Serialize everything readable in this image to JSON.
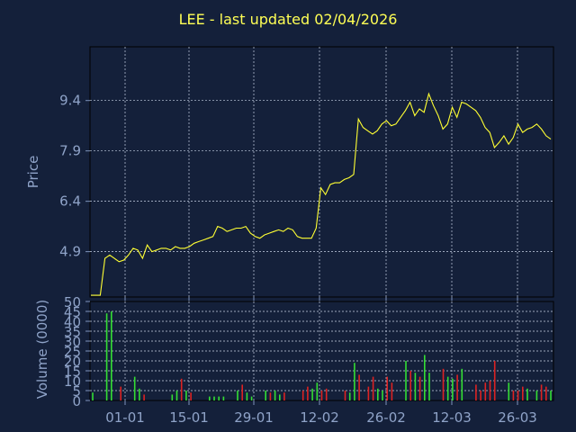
{
  "chart_data": [
    {
      "type": "line",
      "title": "LEE - last updated 02/04/2026",
      "xlabel": "",
      "ylabel": "Price",
      "ylim": [
        3.55,
        11.0
      ],
      "yticks": [
        4.9,
        6.4,
        7.9,
        9.4
      ],
      "xtick_labels": [
        "01-01",
        "15-01",
        "29-01",
        "12-02",
        "26-02",
        "12-03",
        "26-03"
      ],
      "grid": true,
      "line_color": "#ffff33",
      "series": [
        {
          "values": [
            3.6,
            3.6,
            3.6,
            4.7,
            4.8,
            4.7,
            4.6,
            4.65,
            4.8,
            5.0,
            4.95,
            4.7,
            5.1,
            4.9,
            4.95,
            5.0,
            5.0,
            4.95,
            5.05,
            5.0,
            5.0,
            5.05,
            5.15,
            5.2,
            5.25,
            5.3,
            5.35,
            5.65,
            5.6,
            5.5,
            5.55,
            5.6,
            5.6,
            5.65,
            5.45,
            5.35,
            5.3,
            5.4,
            5.45,
            5.5,
            5.55,
            5.5,
            5.6,
            5.55,
            5.35,
            5.3,
            5.3,
            5.3,
            5.6,
            6.8,
            6.6,
            6.9,
            6.95,
            6.95,
            7.05,
            7.1,
            7.2,
            8.85,
            8.6,
            8.5,
            8.4,
            8.5,
            8.7,
            8.8,
            8.65,
            8.7,
            8.9,
            9.1,
            9.35,
            8.95,
            9.15,
            9.05,
            9.6,
            9.25,
            8.95,
            8.55,
            8.7,
            9.2,
            8.9,
            9.35,
            9.3,
            9.2,
            9.1,
            8.9,
            8.6,
            8.45,
            8.0,
            8.15,
            8.35,
            8.1,
            8.3,
            8.7,
            8.45,
            8.55,
            8.6,
            8.7,
            8.55,
            8.35,
            8.25
          ]
        }
      ]
    },
    {
      "type": "bar",
      "title": "",
      "xlabel": "",
      "ylabel": "Volume (0000)",
      "ylim": [
        0,
        50
      ],
      "yticks": [
        0,
        5,
        10,
        15,
        20,
        25,
        30,
        35,
        40,
        45,
        50
      ],
      "xtick_labels": [
        "01-01",
        "15-01",
        "29-01",
        "12-02",
        "26-02",
        "12-03",
        "26-03"
      ],
      "grid": true,
      "up_color": "#33dd33",
      "down_color": "#dd2222",
      "bars": [
        {
          "v": 4,
          "d": "up"
        },
        {
          "v": 0,
          "d": "up"
        },
        {
          "v": 0,
          "d": "up"
        },
        {
          "v": 44,
          "d": "up"
        },
        {
          "v": 45,
          "d": "up"
        },
        {
          "v": 0,
          "d": "up"
        },
        {
          "v": 7,
          "d": "down"
        },
        {
          "v": 0,
          "d": "up"
        },
        {
          "v": 0,
          "d": "up"
        },
        {
          "v": 12,
          "d": "up"
        },
        {
          "v": 6,
          "d": "up"
        },
        {
          "v": 3,
          "d": "down"
        },
        {
          "v": 0,
          "d": "up"
        },
        {
          "v": 0,
          "d": "up"
        },
        {
          "v": 0,
          "d": "up"
        },
        {
          "v": 0,
          "d": "up"
        },
        {
          "v": 0,
          "d": "up"
        },
        {
          "v": 3,
          "d": "up"
        },
        {
          "v": 5,
          "d": "up"
        },
        {
          "v": 11,
          "d": "down"
        },
        {
          "v": 5,
          "d": "up"
        },
        {
          "v": 4,
          "d": "down"
        },
        {
          "v": 0,
          "d": "up"
        },
        {
          "v": 0,
          "d": "up"
        },
        {
          "v": 0,
          "d": "up"
        },
        {
          "v": 2,
          "d": "up"
        },
        {
          "v": 2,
          "d": "up"
        },
        {
          "v": 2,
          "d": "up"
        },
        {
          "v": 2,
          "d": "up"
        },
        {
          "v": 0,
          "d": "up"
        },
        {
          "v": 0,
          "d": "up"
        },
        {
          "v": 5,
          "d": "up"
        },
        {
          "v": 8,
          "d": "down"
        },
        {
          "v": 4,
          "d": "up"
        },
        {
          "v": 2,
          "d": "up"
        },
        {
          "v": 0,
          "d": "up"
        },
        {
          "v": 0,
          "d": "up"
        },
        {
          "v": 5,
          "d": "up"
        },
        {
          "v": 4,
          "d": "down"
        },
        {
          "v": 5,
          "d": "up"
        },
        {
          "v": 3,
          "d": "up"
        },
        {
          "v": 4,
          "d": "down"
        },
        {
          "v": 0,
          "d": "up"
        },
        {
          "v": 0,
          "d": "up"
        },
        {
          "v": 0,
          "d": "up"
        },
        {
          "v": 5,
          "d": "down"
        },
        {
          "v": 7,
          "d": "down"
        },
        {
          "v": 6,
          "d": "up"
        },
        {
          "v": 9,
          "d": "up"
        },
        {
          "v": 5,
          "d": "down"
        },
        {
          "v": 6,
          "d": "down"
        },
        {
          "v": 0,
          "d": "up"
        },
        {
          "v": 0,
          "d": "up"
        },
        {
          "v": 0,
          "d": "up"
        },
        {
          "v": 5,
          "d": "down"
        },
        {
          "v": 4,
          "d": "up"
        },
        {
          "v": 19,
          "d": "up"
        },
        {
          "v": 13,
          "d": "down"
        },
        {
          "v": 0,
          "d": "up"
        },
        {
          "v": 7,
          "d": "down"
        },
        {
          "v": 12,
          "d": "down"
        },
        {
          "v": 6,
          "d": "up"
        },
        {
          "v": 5,
          "d": "up"
        },
        {
          "v": 12,
          "d": "down"
        },
        {
          "v": 9,
          "d": "down"
        },
        {
          "v": 0,
          "d": "up"
        },
        {
          "v": 0,
          "d": "up"
        },
        {
          "v": 20,
          "d": "up"
        },
        {
          "v": 15,
          "d": "down"
        },
        {
          "v": 14,
          "d": "up"
        },
        {
          "v": 12,
          "d": "down"
        },
        {
          "v": 23,
          "d": "up"
        },
        {
          "v": 14,
          "d": "up"
        },
        {
          "v": 0,
          "d": "up"
        },
        {
          "v": 0,
          "d": "up"
        },
        {
          "v": 16,
          "d": "down"
        },
        {
          "v": 12,
          "d": "up"
        },
        {
          "v": 11,
          "d": "up"
        },
        {
          "v": 13,
          "d": "down"
        },
        {
          "v": 16,
          "d": "up"
        },
        {
          "v": 0,
          "d": "up"
        },
        {
          "v": 0,
          "d": "up"
        },
        {
          "v": 8,
          "d": "down"
        },
        {
          "v": 5,
          "d": "down"
        },
        {
          "v": 9,
          "d": "down"
        },
        {
          "v": 10,
          "d": "down"
        },
        {
          "v": 20,
          "d": "down"
        },
        {
          "v": 0,
          "d": "up"
        },
        {
          "v": 0,
          "d": "up"
        },
        {
          "v": 9,
          "d": "up"
        },
        {
          "v": 5,
          "d": "down"
        },
        {
          "v": 5,
          "d": "down"
        },
        {
          "v": 7,
          "d": "down"
        },
        {
          "v": 6,
          "d": "up"
        },
        {
          "v": 0,
          "d": "up"
        },
        {
          "v": 5,
          "d": "up"
        },
        {
          "v": 8,
          "d": "down"
        },
        {
          "v": 7,
          "d": "down"
        },
        {
          "v": 5,
          "d": "up"
        }
      ]
    }
  ]
}
